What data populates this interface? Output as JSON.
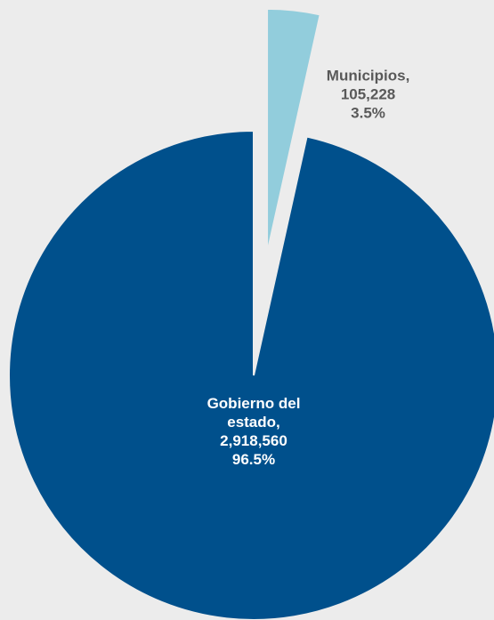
{
  "chart_data": {
    "type": "pie",
    "categories": [
      "Gobierno del estado,",
      "Municipios,"
    ],
    "values": [
      2918560,
      105228
    ],
    "value_labels": [
      "2,918,560",
      "105,228"
    ],
    "percentages": [
      96.5,
      3.5
    ],
    "percentage_labels": [
      "96.5%",
      "3.5%"
    ],
    "colors": [
      "#00508c",
      "#92cddc"
    ],
    "label_colors": [
      "#ffffff",
      "#595959"
    ],
    "exploded": [
      false,
      true
    ]
  }
}
